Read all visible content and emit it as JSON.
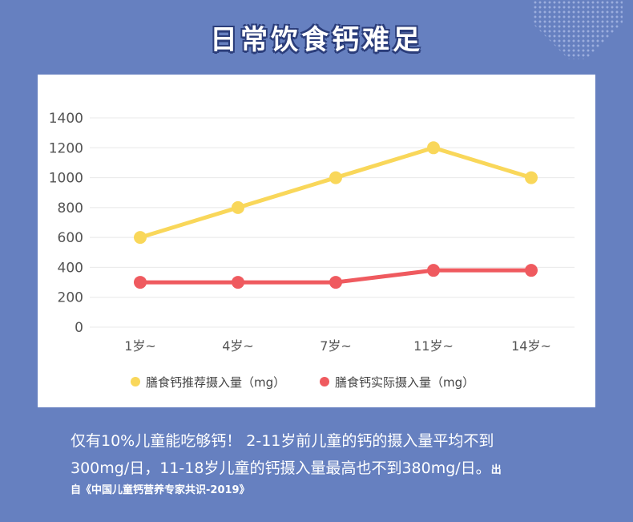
{
  "title": "日常饮食钙难足",
  "chart_data": {
    "type": "line",
    "categories": [
      "1岁~",
      "4岁~",
      "7岁~",
      "11岁~",
      "14岁~"
    ],
    "series": [
      {
        "name": "膳食钙推荐摄入量（mg）",
        "values": [
          600,
          800,
          1000,
          1200,
          1000
        ],
        "color": "#f9d75a"
      },
      {
        "name": "膳食钙实际摄入量（mg）",
        "values": [
          300,
          300,
          300,
          380,
          380
        ],
        "color": "#ef5a5f"
      }
    ],
    "yticks": [
      0,
      200,
      400,
      600,
      800,
      1000,
      1200,
      1400
    ],
    "ylim": [
      0,
      1400
    ],
    "grid": true,
    "legend": "bottom"
  },
  "note": {
    "line1": "仅有10%儿童能吃够钙！ 2-11岁前儿童的钙的摄入量平均不到",
    "line2": "300mg/日，11-18岁儿童的钙摄入量最高也不到380mg/日。",
    "source_a": "出",
    "source_b": "自《中国儿童钙营养专家共识-2019》"
  }
}
